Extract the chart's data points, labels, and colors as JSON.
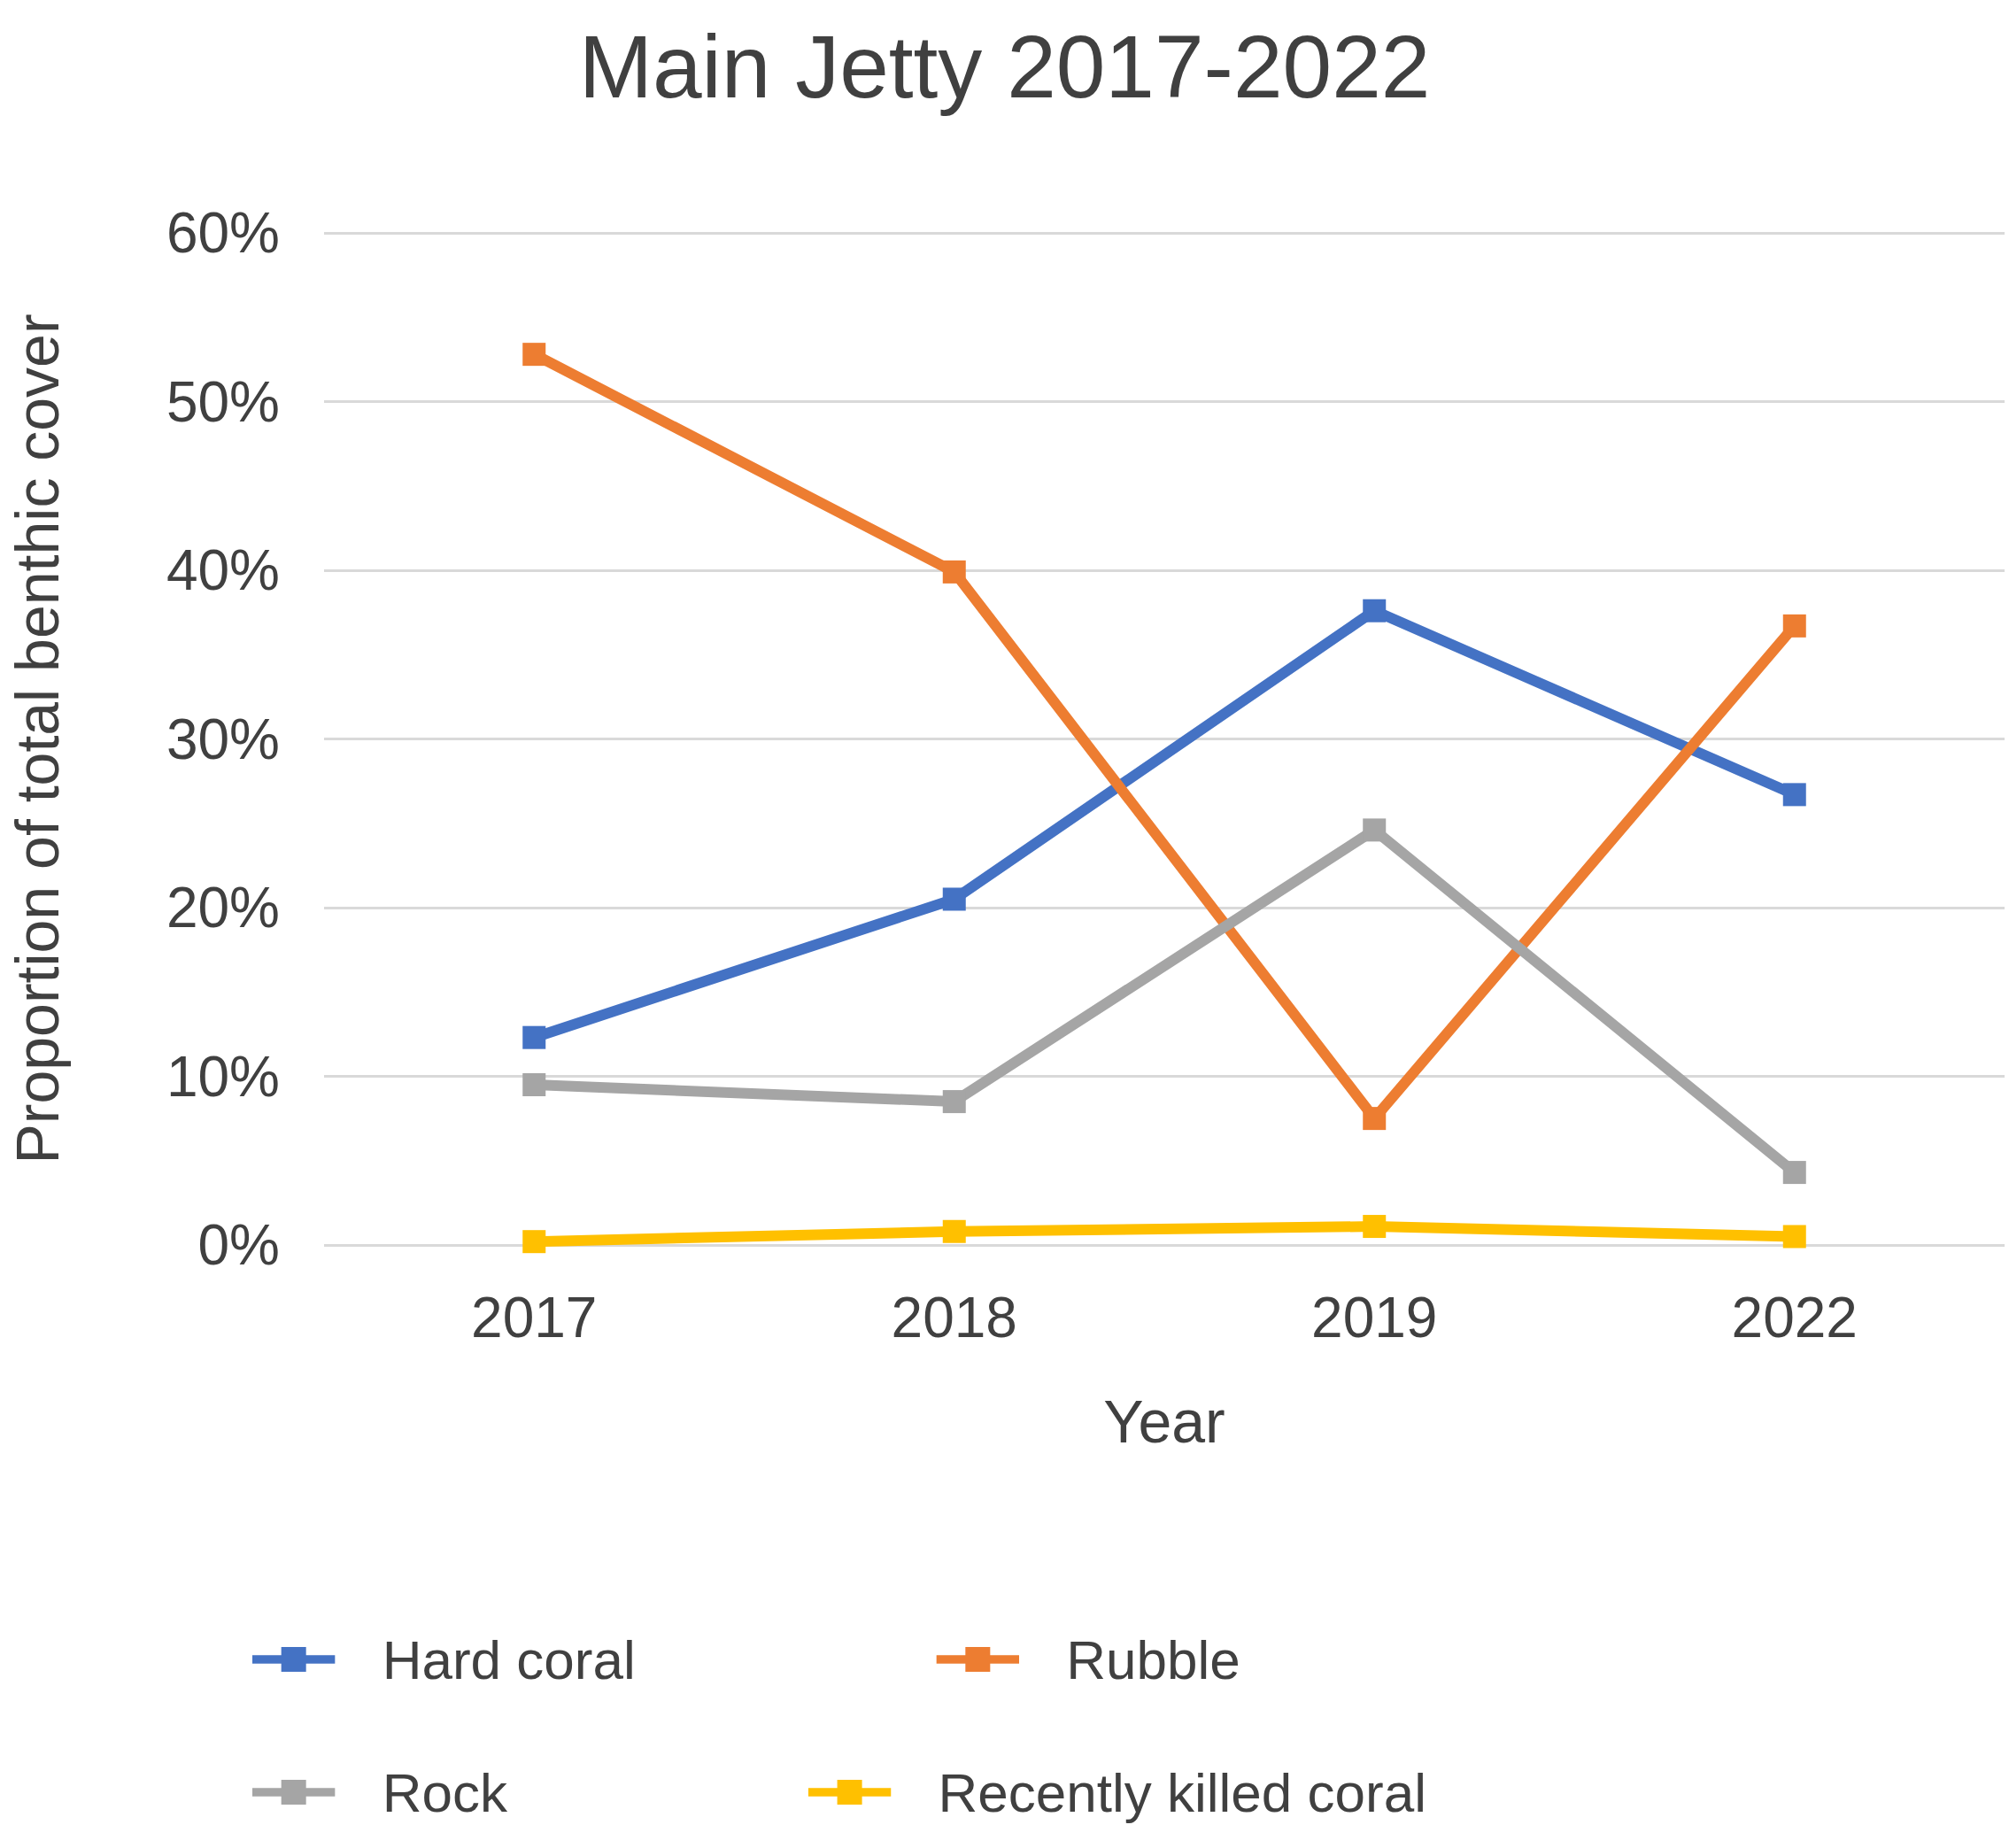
{
  "chart_data": {
    "type": "line",
    "title": "Main Jetty 2017-2022",
    "xlabel": "Year",
    "ylabel": "Proportion of total benthic cover",
    "categories": [
      "2017",
      "2018",
      "2019",
      "2022"
    ],
    "series": [
      {
        "name": "Hard coral",
        "color": "#4472c4",
        "values": [
          12.3,
          20.5,
          37.6,
          26.7
        ]
      },
      {
        "name": "Rubble",
        "color": "#ed7d31",
        "values": [
          52.8,
          39.9,
          7.5,
          36.7
        ]
      },
      {
        "name": "Rock",
        "color": "#a5a5a5",
        "values": [
          9.5,
          8.5,
          24.6,
          4.3
        ]
      },
      {
        "name": "Recently killed coral",
        "color": "#ffc000",
        "values": [
          0.2,
          0.8,
          1.1,
          0.5
        ]
      }
    ],
    "ylim": [
      0,
      60
    ],
    "yticks": [
      {
        "value": 0,
        "label": "0%"
      },
      {
        "value": 10,
        "label": "10%"
      },
      {
        "value": 20,
        "label": "20%"
      },
      {
        "value": 30,
        "label": "30%"
      },
      {
        "value": 40,
        "label": "40%"
      },
      {
        "value": 50,
        "label": "50%"
      },
      {
        "value": 60,
        "label": "60%"
      }
    ],
    "grid": "y",
    "legend": "bottom",
    "marker": "square",
    "line_style": "solid"
  }
}
